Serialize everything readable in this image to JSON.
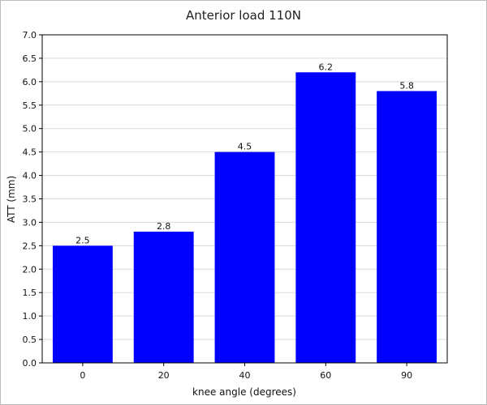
{
  "chart_data": {
    "type": "bar",
    "title": "Anterior load 110N",
    "xlabel": "knee angle (degrees)",
    "ylabel": "ATT (mm)",
    "categories": [
      "0",
      "20",
      "40",
      "60",
      "90"
    ],
    "values": [
      2.5,
      2.8,
      4.5,
      6.2,
      5.8
    ],
    "value_labels": [
      "2.5",
      "2.8",
      "4.5",
      "6.2",
      "5.8"
    ],
    "ylim": [
      0,
      7
    ],
    "yticks": [
      "0.0",
      "0.5",
      "1.0",
      "1.5",
      "2.0",
      "2.5",
      "3.0",
      "3.5",
      "4.0",
      "4.5",
      "5.0",
      "5.5",
      "6.0",
      "6.5",
      "7.0"
    ],
    "grid": true,
    "legend": "none",
    "bar_color": "#0000ff"
  }
}
